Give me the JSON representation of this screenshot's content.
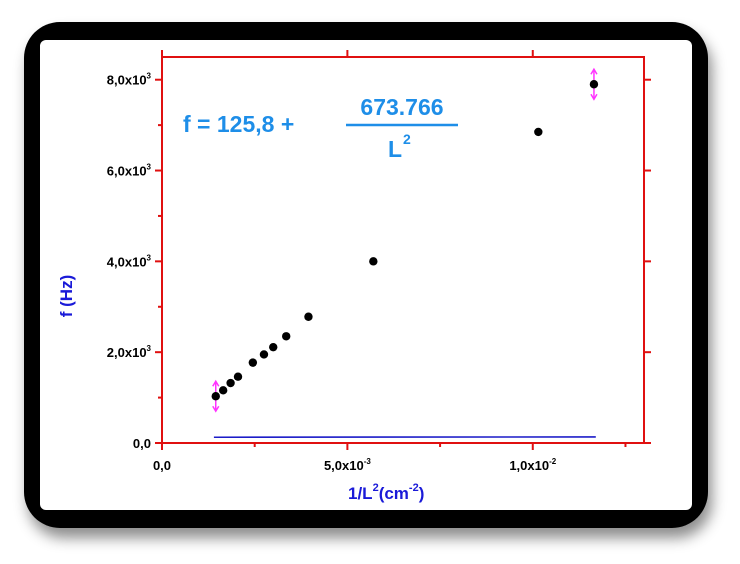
{
  "chart_data": {
    "type": "scatter",
    "title": "",
    "xlabel": "1/L2(cm-2)",
    "ylabel": "f (Hz)",
    "xlim": [
      0,
      0.013
    ],
    "ylim": [
      0,
      8500
    ],
    "grid": false,
    "x_ticks": [
      {
        "value": 0,
        "label": "0,0",
        "exp": ""
      },
      {
        "value": 0.005,
        "label": "5,0x10",
        "exp": "-3"
      },
      {
        "value": 0.01,
        "label": "1,0x10",
        "exp": "-2"
      }
    ],
    "y_ticks": [
      {
        "value": 0,
        "label": "0,0",
        "exp": ""
      },
      {
        "value": 2000,
        "label": "2,0x10",
        "exp": "3"
      },
      {
        "value": 4000,
        "label": "4,0x10",
        "exp": "3"
      },
      {
        "value": 6000,
        "label": "6,0x10",
        "exp": "3"
      },
      {
        "value": 8000,
        "label": "8,0x10",
        "exp": "3"
      }
    ],
    "series": [
      {
        "x": [
          0.00145,
          0.00165,
          0.00185,
          0.00205,
          0.00245,
          0.00275,
          0.003,
          0.00335,
          0.00395,
          0.0057,
          0.01015,
          0.01165
        ],
        "y": [
          1030,
          1160,
          1320,
          1460,
          1770,
          1950,
          2110,
          2350,
          2780,
          4000,
          6850,
          7900
        ]
      }
    ],
    "error_bars": [
      {
        "x": 0.00145,
        "y": 1030,
        "err": 330
      },
      {
        "x": 0.01165,
        "y": 7900,
        "err": 330
      }
    ],
    "fit": {
      "intercept": 125.8,
      "slope": 673.766
    },
    "annotation": {
      "lhs": "f = 125,8 + ",
      "numerator": "673.766",
      "denominator": "L",
      "denominator_exp": "2"
    },
    "colors": {
      "axes": "#e01010",
      "points": "#000000",
      "fit_line": "#1c1cc8",
      "error_bars": "#ff33ff",
      "axis_label": "#1a1ad8",
      "equation": "#1e8ee8"
    }
  }
}
